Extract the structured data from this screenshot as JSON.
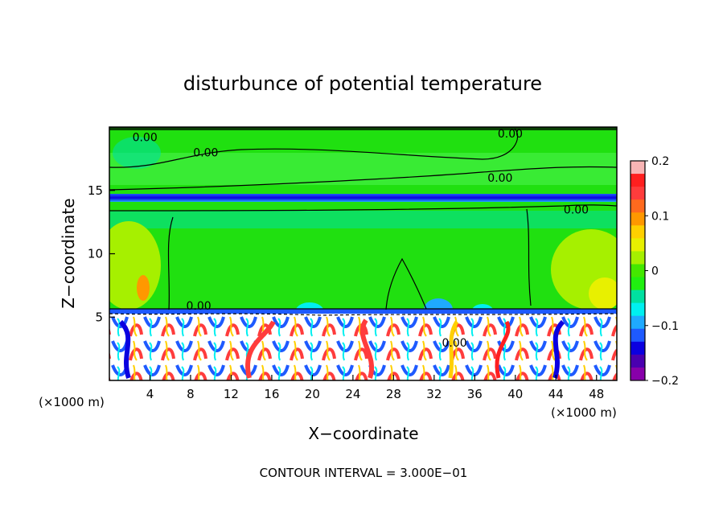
{
  "chart_data": {
    "type": "heatmap",
    "title": "disturbunce of potential temperature",
    "xlabel": "X−coordinate",
    "ylabel": "Z−coordinate",
    "x_unit": "(×1000 m)",
    "z_unit": "(×1000 m)",
    "xlim": [
      0,
      50
    ],
    "ylim": [
      0,
      20
    ],
    "x_ticks": [
      4,
      8,
      12,
      16,
      20,
      24,
      28,
      32,
      36,
      40,
      44,
      48
    ],
    "y_ticks": [
      5,
      10,
      15
    ],
    "colorbar": {
      "range": [
        -0.2,
        0.2
      ],
      "tick_values": [
        0.2,
        0.1,
        0,
        -0.1,
        -0.2
      ],
      "tick_labels": [
        "0.2",
        "0.1",
        "0",
        "−0.1",
        "−0.2"
      ],
      "colors": [
        "#f7b4b4",
        "#ff1f1f",
        "#ff3c3c",
        "#ff6a1e",
        "#ff9800",
        "#ffd000",
        "#e8f000",
        "#a6f000",
        "#44e800",
        "#20f010",
        "#00e0a0",
        "#00f0f0",
        "#1faaff",
        "#1e5aff",
        "#0b00e0",
        "#4a00b0",
        "#8800aa"
      ]
    },
    "contour_labels": [
      {
        "text": "0.00",
        "x": 3.5,
        "z": 19.2
      },
      {
        "text": "0.00",
        "x": 9.5,
        "z": 18.0
      },
      {
        "text": "0.00",
        "x": 39.5,
        "z": 19.5
      },
      {
        "text": "0.00",
        "x": 38.5,
        "z": 16.0
      },
      {
        "text": "0.00",
        "x": 46.0,
        "z": 13.5
      },
      {
        "text": "0.00",
        "x": 8.8,
        "z": 5.9
      },
      {
        "text": "0.00",
        "x": 34.0,
        "z": 3.0
      }
    ],
    "footer": "CONTOUR INTERVAL = 3.000E−01"
  }
}
